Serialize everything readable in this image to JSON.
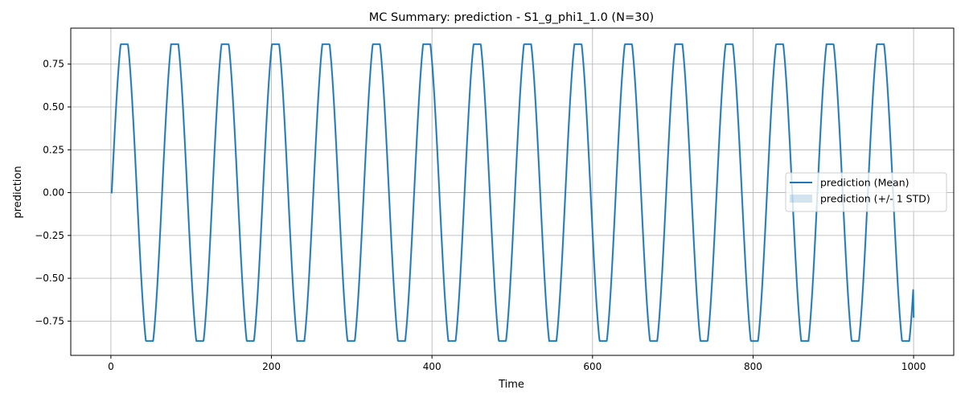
{
  "chart_data": {
    "type": "line",
    "title": "MC Summary: prediction - S1_g_phi1_1.0 (N=30)",
    "xlabel": "Time",
    "ylabel": "prediction",
    "xlim": [
      -50,
      1050
    ],
    "ylim": [
      -0.95,
      0.96
    ],
    "xticks": [
      0,
      200,
      400,
      600,
      800,
      1000
    ],
    "xtick_labels": [
      "0",
      "200",
      "400",
      "600",
      "800",
      "1000"
    ],
    "yticks": [
      -0.75,
      -0.5,
      -0.25,
      0.0,
      0.25,
      0.5,
      0.75
    ],
    "ytick_labels": [
      "−0.75",
      "−0.50",
      "−0.25",
      "0.00",
      "0.25",
      "0.50",
      "0.75"
    ],
    "grid": true,
    "legend_position": "right",
    "series": [
      {
        "name": "prediction (Mean)",
        "color": "#1f77b4",
        "x_start": 0,
        "x_end": 1000,
        "period": 62.8,
        "amplitude": 0.86,
        "saturation": 0.866,
        "initial_value": 0.0,
        "final_value": -0.73
      }
    ],
    "band": {
      "name": "prediction (+/- 1 STD)",
      "color": "#1f77b4",
      "opacity": 0.2
    }
  }
}
